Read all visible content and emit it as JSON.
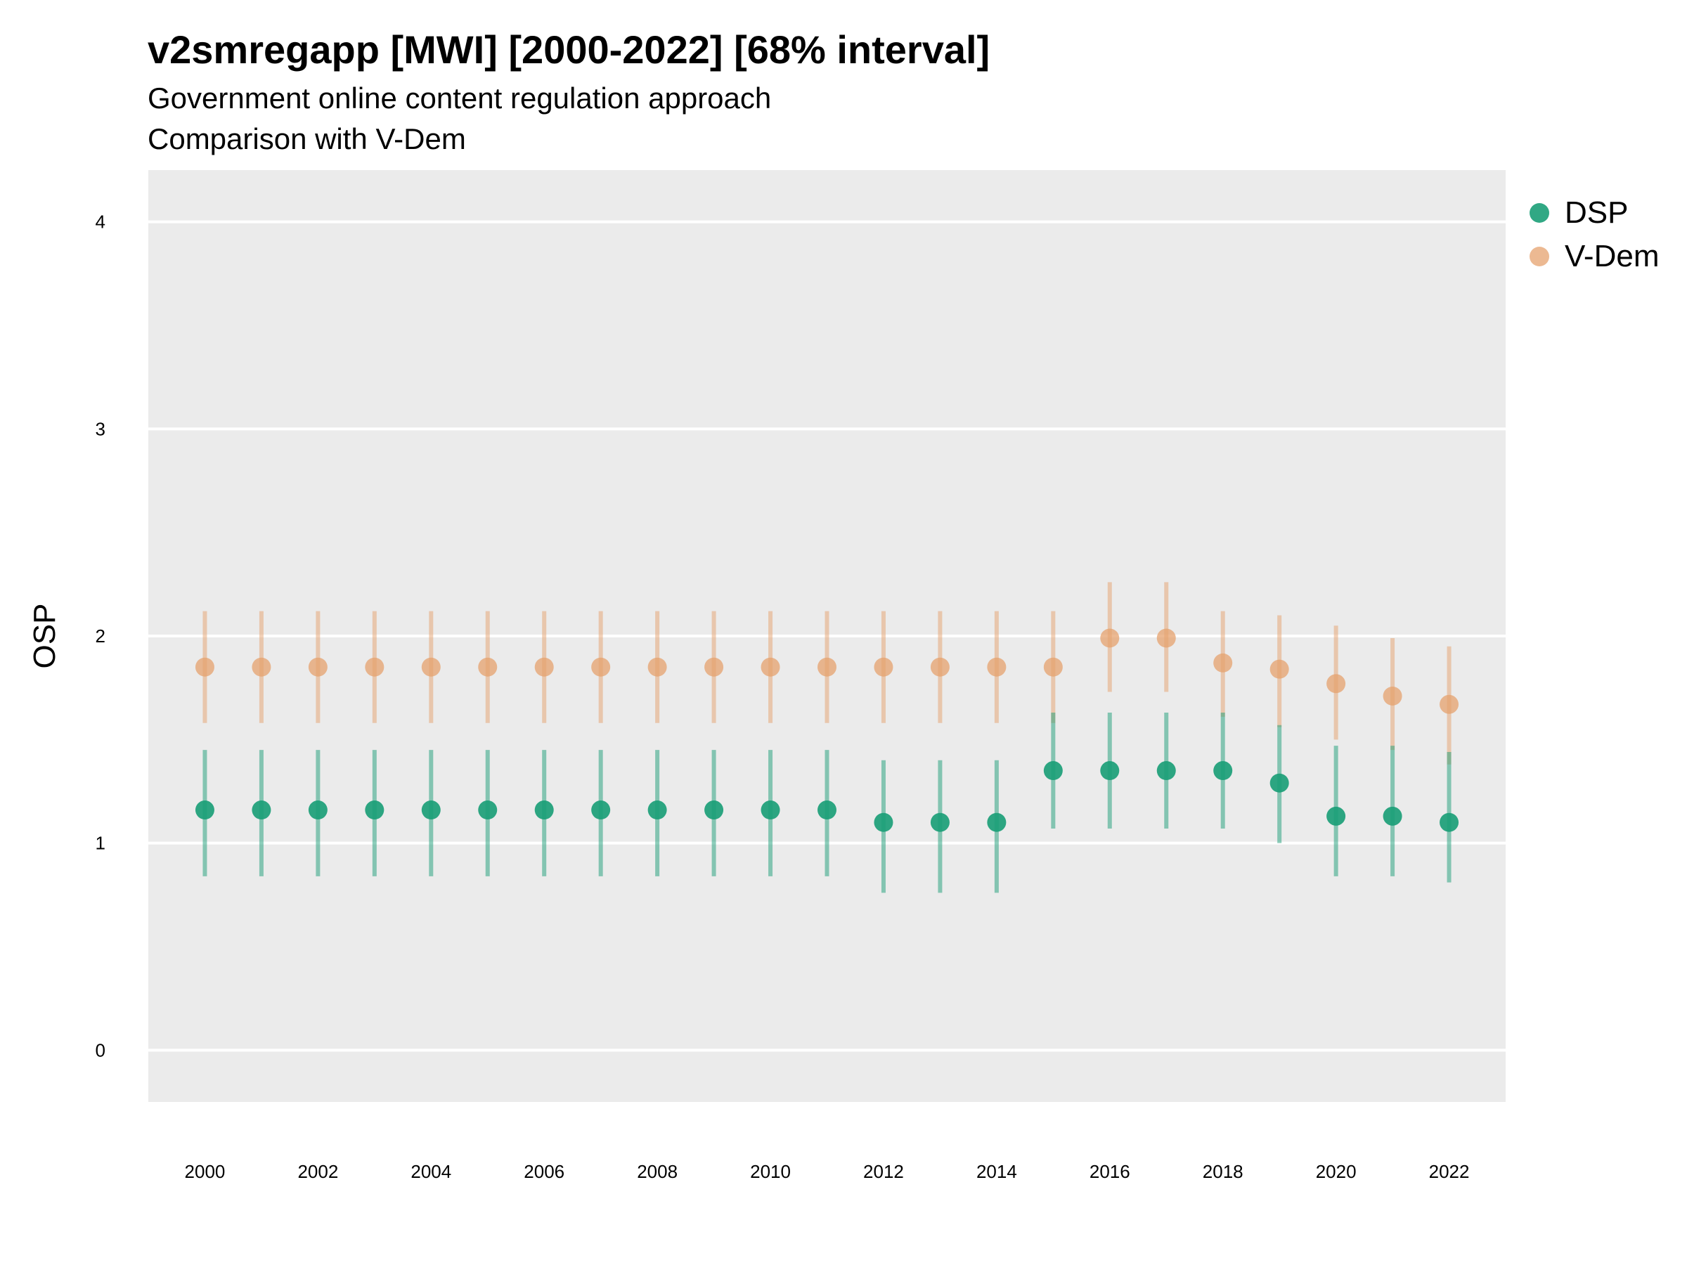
{
  "header": {
    "title": "v2smregapp [MWI] [2000-2022] [68% interval]",
    "subtitle": "Government online content regulation approach",
    "subtitle2": "Comparison with V-Dem"
  },
  "legend": {
    "items": [
      {
        "label": "DSP",
        "color": "#1b9e77"
      },
      {
        "label": "V-Dem",
        "color": "#e6a16e"
      }
    ]
  },
  "chart_data": {
    "type": "scatter",
    "title": "v2smregapp [MWI] [2000-2022] [68% interval]",
    "ylabel": "OSP",
    "xlabel": "",
    "ylim": [
      -0.25,
      4.25
    ],
    "xlim": [
      1999,
      2023
    ],
    "yticks": [
      0,
      1,
      2,
      3,
      4
    ],
    "xticks": [
      2000,
      2002,
      2004,
      2006,
      2008,
      2010,
      2012,
      2014,
      2016,
      2018,
      2020,
      2022
    ],
    "grid": "horizontal",
    "legend_position": "right",
    "panel_background": "#ebebeb",
    "x": [
      2000,
      2001,
      2002,
      2003,
      2004,
      2005,
      2006,
      2007,
      2008,
      2009,
      2010,
      2011,
      2012,
      2013,
      2014,
      2015,
      2016,
      2017,
      2018,
      2019,
      2020,
      2021,
      2022
    ],
    "series": [
      {
        "name": "DSP",
        "color": "#1b9e77",
        "values": [
          1.16,
          1.16,
          1.16,
          1.16,
          1.16,
          1.16,
          1.16,
          1.16,
          1.16,
          1.16,
          1.16,
          1.16,
          1.1,
          1.1,
          1.1,
          1.35,
          1.35,
          1.35,
          1.35,
          1.29,
          1.13,
          1.13,
          1.1
        ],
        "lower": [
          0.84,
          0.84,
          0.84,
          0.84,
          0.84,
          0.84,
          0.84,
          0.84,
          0.84,
          0.84,
          0.84,
          0.84,
          0.76,
          0.76,
          0.76,
          1.07,
          1.07,
          1.07,
          1.07,
          1.0,
          0.84,
          0.84,
          0.81
        ],
        "upper": [
          1.45,
          1.45,
          1.45,
          1.45,
          1.45,
          1.45,
          1.45,
          1.45,
          1.45,
          1.45,
          1.45,
          1.45,
          1.4,
          1.4,
          1.4,
          1.63,
          1.63,
          1.63,
          1.63,
          1.57,
          1.47,
          1.47,
          1.44
        ]
      },
      {
        "name": "V-Dem",
        "color": "#e6a16e",
        "values": [
          1.85,
          1.85,
          1.85,
          1.85,
          1.85,
          1.85,
          1.85,
          1.85,
          1.85,
          1.85,
          1.85,
          1.85,
          1.85,
          1.85,
          1.85,
          1.85,
          1.99,
          1.99,
          1.87,
          1.84,
          1.77,
          1.71,
          1.67
        ],
        "lower": [
          1.58,
          1.58,
          1.58,
          1.58,
          1.58,
          1.58,
          1.58,
          1.58,
          1.58,
          1.58,
          1.58,
          1.58,
          1.58,
          1.58,
          1.58,
          1.58,
          1.73,
          1.73,
          1.61,
          1.56,
          1.5,
          1.45,
          1.38
        ],
        "upper": [
          2.12,
          2.12,
          2.12,
          2.12,
          2.12,
          2.12,
          2.12,
          2.12,
          2.12,
          2.12,
          2.12,
          2.12,
          2.12,
          2.12,
          2.12,
          2.12,
          2.26,
          2.26,
          2.12,
          2.1,
          2.05,
          1.99,
          1.95
        ]
      }
    ]
  }
}
